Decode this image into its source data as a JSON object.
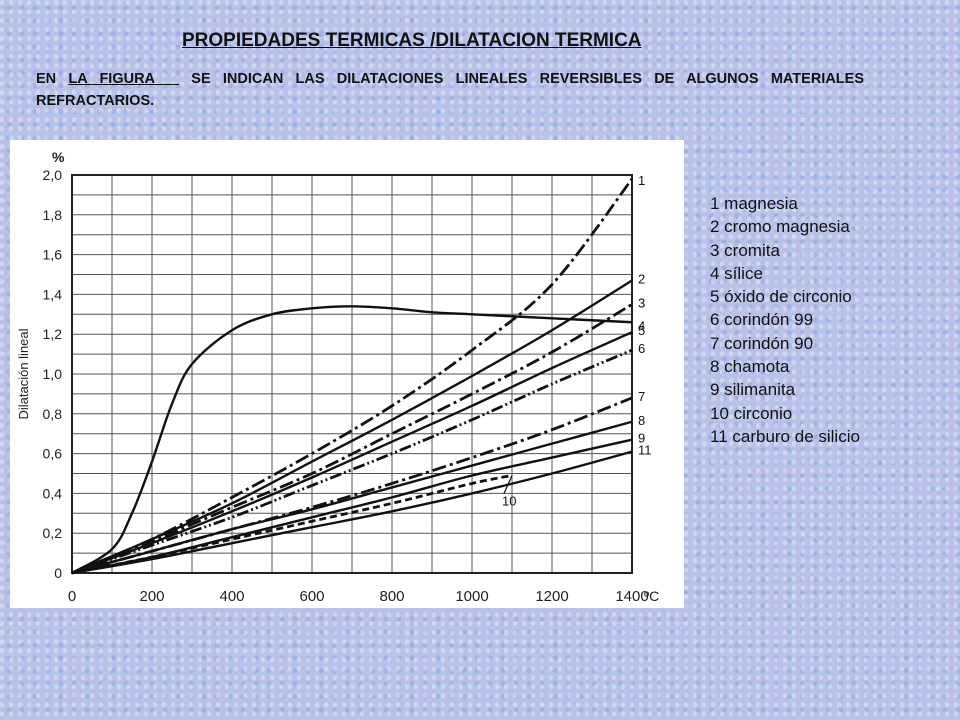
{
  "header": {
    "title": "PROPIEDADES TERMICAS /DILATACION TERMICA",
    "intro_before": "EN ",
    "intro_figure": "LA FIGURA  ",
    "intro_after": " SE INDICAN LAS DILATACIONES LINEALES REVERSIBLES DE ALGUNOS MATERIALES REFRACTARIOS."
  },
  "legend": [
    "1 magnesia",
    "2 cromo magnesia",
    "3 cromita",
    "4 sílice",
    "5 óxido de circonio",
    "6 corindón 99",
    "7 corindón 90",
    "8 chamota",
    "9 silimanita",
    "10 circonio",
    "11 carburo de silicio"
  ],
  "chart_data": {
    "type": "line",
    "title": "",
    "xlabel": "",
    "ylabel": "Dilatación lineal",
    "x_unit": "ºC",
    "y_unit": "%",
    "xlim": [
      0,
      1400
    ],
    "ylim": [
      0,
      2.0
    ],
    "x_ticks": [
      0,
      200,
      400,
      600,
      800,
      1000,
      1200,
      1400
    ],
    "x_tick_labels": [
      "0",
      "200",
      "400",
      "600",
      "800",
      "1000",
      "1200",
      "1400"
    ],
    "y_ticks": [
      0,
      0.2,
      0.4,
      0.6,
      0.8,
      1.0,
      1.2,
      1.4,
      1.6,
      1.8,
      2.0
    ],
    "y_tick_labels": [
      "0",
      "0,2",
      "0,4",
      "0,6",
      "0,8",
      "1,0",
      "1,2",
      "1,4",
      "1,6",
      "1,8",
      "2,0"
    ],
    "grid": true,
    "series": [
      {
        "name": "1",
        "style": "dashdot",
        "x": [
          0,
          200,
          400,
          600,
          800,
          1000,
          1200,
          1400
        ],
        "y": [
          0,
          0.17,
          0.38,
          0.6,
          0.84,
          1.12,
          1.45,
          1.98
        ]
      },
      {
        "name": "2",
        "style": "solid",
        "x": [
          0,
          200,
          400,
          600,
          800,
          1000,
          1200,
          1400
        ],
        "y": [
          0,
          0.17,
          0.35,
          0.56,
          0.77,
          0.99,
          1.22,
          1.47
        ]
      },
      {
        "name": "3",
        "style": "dashdot",
        "x": [
          0,
          200,
          400,
          600,
          800,
          1000,
          1200,
          1400
        ],
        "y": [
          0,
          0.16,
          0.33,
          0.5,
          0.7,
          0.9,
          1.11,
          1.35
        ]
      },
      {
        "name": "4",
        "style": "solid",
        "x": [
          0,
          100,
          150,
          200,
          250,
          300,
          400,
          500,
          600,
          700,
          800,
          900,
          1000,
          1200,
          1400
        ],
        "y": [
          0,
          0.12,
          0.3,
          0.56,
          0.85,
          1.05,
          1.22,
          1.3,
          1.33,
          1.34,
          1.33,
          1.31,
          1.3,
          1.28,
          1.26
        ]
      },
      {
        "name": "5",
        "style": "solid",
        "x": [
          0,
          200,
          400,
          600,
          800,
          1000,
          1200,
          1400
        ],
        "y": [
          0,
          0.15,
          0.31,
          0.48,
          0.66,
          0.84,
          1.03,
          1.21
        ]
      },
      {
        "name": "6",
        "style": "dashdotdot",
        "x": [
          0,
          200,
          400,
          600,
          800,
          1000,
          1200,
          1400
        ],
        "y": [
          0,
          0.14,
          0.28,
          0.44,
          0.6,
          0.77,
          0.95,
          1.12
        ]
      },
      {
        "name": "7",
        "style": "dashdot",
        "x": [
          0,
          200,
          400,
          600,
          800,
          1000,
          1200,
          1400
        ],
        "y": [
          0,
          0.11,
          0.22,
          0.33,
          0.45,
          0.58,
          0.72,
          0.88
        ]
      },
      {
        "name": "8",
        "style": "solid",
        "x": [
          0,
          200,
          400,
          600,
          800,
          1000,
          1200,
          1400
        ],
        "y": [
          0,
          0.11,
          0.22,
          0.32,
          0.43,
          0.54,
          0.65,
          0.76
        ]
      },
      {
        "name": "9",
        "style": "solid",
        "x": [
          0,
          200,
          400,
          600,
          800,
          1000,
          1200,
          1400
        ],
        "y": [
          0,
          0.08,
          0.18,
          0.28,
          0.38,
          0.49,
          0.58,
          0.67
        ]
      },
      {
        "name": "10",
        "style": "dashed",
        "x": [
          0,
          200,
          400,
          600,
          800,
          1000,
          1100
        ],
        "y": [
          0,
          0.08,
          0.17,
          0.26,
          0.35,
          0.45,
          0.49
        ]
      },
      {
        "name": "11",
        "style": "solid",
        "x": [
          0,
          200,
          400,
          600,
          800,
          1000,
          1200,
          1400
        ],
        "y": [
          0,
          0.07,
          0.15,
          0.23,
          0.31,
          0.4,
          0.5,
          0.61
        ]
      }
    ]
  }
}
